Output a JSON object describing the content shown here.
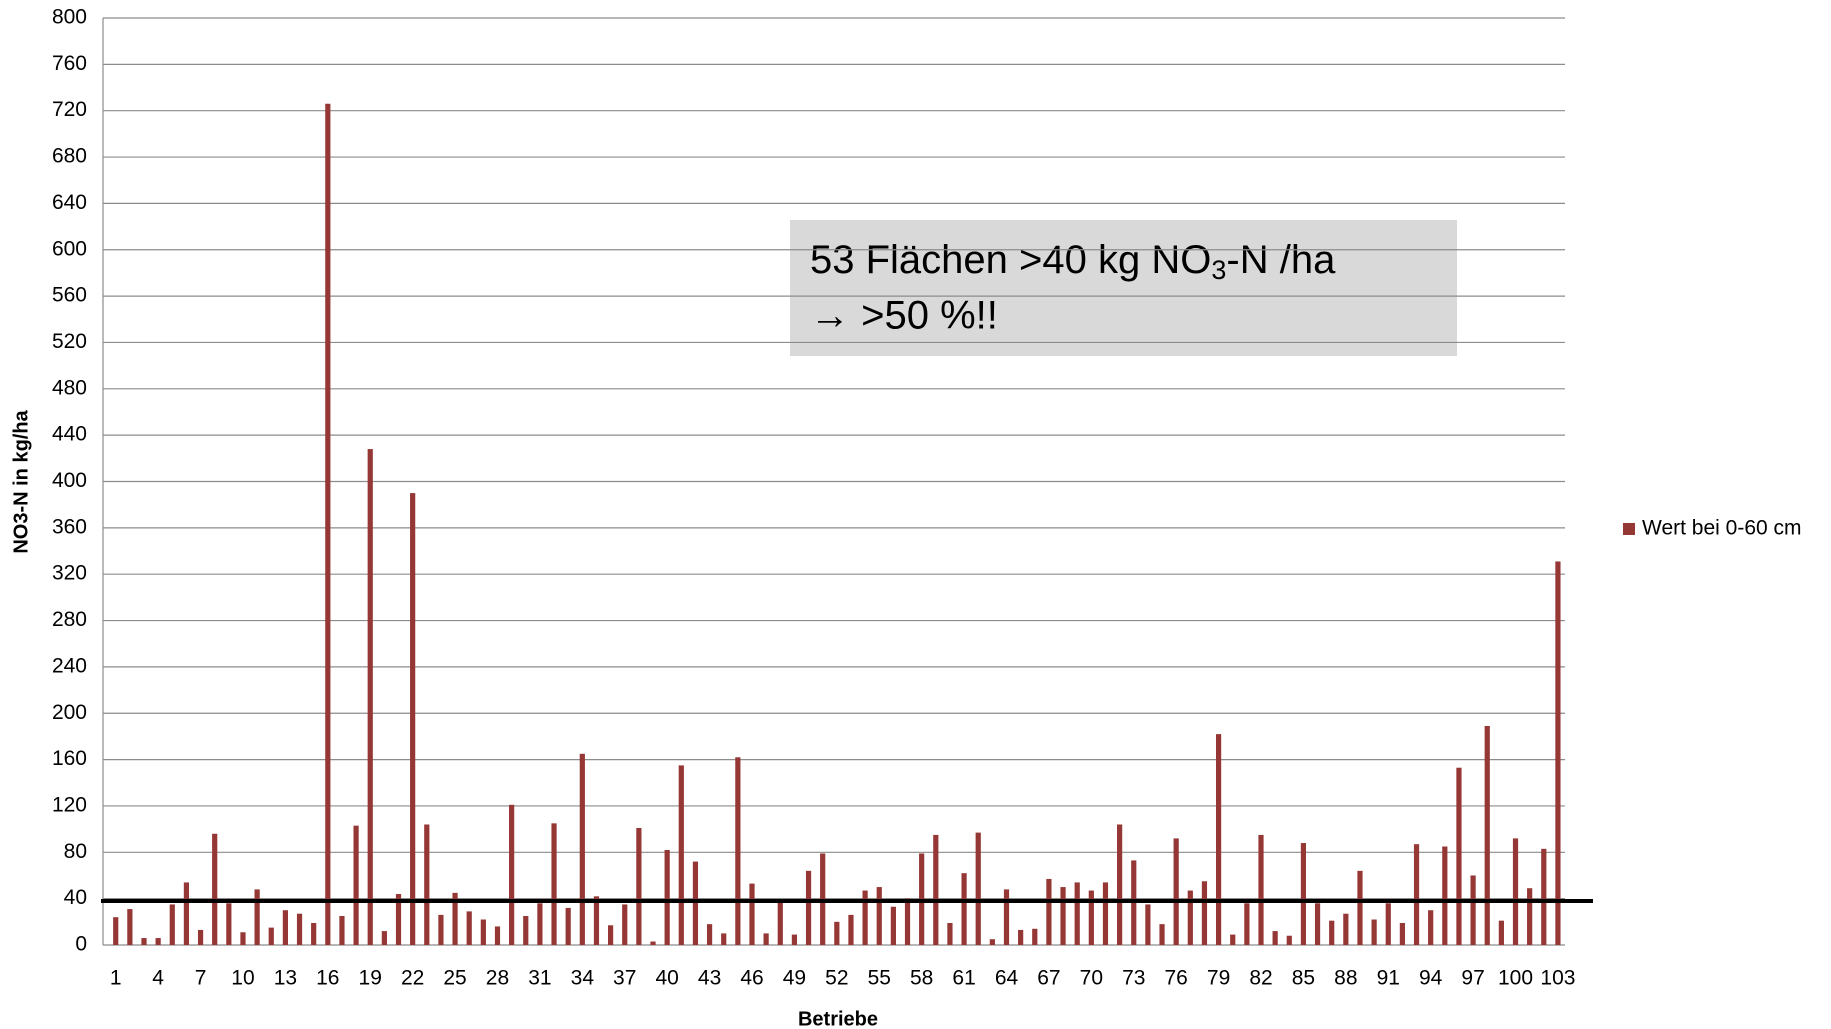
{
  "chart_data": {
    "type": "bar",
    "y_label": "NO3-N in kg/ha",
    "x_label": "Betriebe",
    "categories": [
      "1",
      null,
      null,
      "4",
      null,
      null,
      "7",
      null,
      null,
      "10",
      null,
      null,
      "13",
      null,
      null,
      "16",
      null,
      null,
      "19",
      null,
      null,
      "22",
      null,
      null,
      "25",
      null,
      null,
      "28",
      null,
      null,
      "31",
      null,
      null,
      "34",
      null,
      null,
      "37",
      null,
      null,
      "40",
      null,
      null,
      "43",
      null,
      null,
      "46",
      null,
      null,
      "49",
      null,
      null,
      "52",
      null,
      null,
      "55",
      null,
      null,
      "58",
      null,
      null,
      "61",
      null,
      null,
      "64",
      null,
      null,
      "67",
      null,
      null,
      "70",
      null,
      null,
      "73",
      null,
      null,
      "76",
      null,
      null,
      "79",
      null,
      null,
      "82",
      null,
      null,
      "85",
      null,
      null,
      "88",
      null,
      null,
      "91",
      null,
      null,
      "94",
      null,
      null,
      "97",
      null,
      null,
      "100",
      null,
      null,
      "103"
    ],
    "series": [
      {
        "name": "Wert bei 0-60 cm",
        "color": "#953735",
        "values": [
          24,
          31,
          6,
          6,
          35,
          54,
          13,
          96,
          36,
          11,
          48,
          15,
          30,
          27,
          19,
          726,
          25,
          103,
          428,
          12,
          44,
          390,
          104,
          26,
          45,
          29,
          22,
          16,
          121,
          25,
          36,
          105,
          32,
          165,
          42,
          17,
          35,
          101,
          3,
          82,
          155,
          72,
          18,
          10,
          162,
          53,
          10,
          37,
          9,
          64,
          79,
          20,
          26,
          47,
          50,
          33,
          40,
          79,
          95,
          19,
          62,
          97,
          5,
          48,
          13,
          14,
          57,
          50,
          54,
          47,
          54,
          104,
          73,
          35,
          18,
          92,
          47,
          55,
          182,
          9,
          36,
          95,
          12,
          8,
          88,
          36,
          21,
          27,
          64,
          22,
          36,
          19,
          87,
          30,
          85,
          153,
          60,
          189,
          21,
          92,
          49,
          83,
          331
        ]
      }
    ],
    "ylim": [
      0,
      800
    ],
    "yticks": [
      0,
      40,
      80,
      120,
      160,
      200,
      240,
      280,
      320,
      360,
      400,
      440,
      480,
      520,
      560,
      600,
      640,
      680,
      720,
      760,
      800
    ],
    "grid": true,
    "legend": "right",
    "threshold": 38,
    "annotation": {
      "line1": [
        "53 Flächen >40 kg NO",
        "3",
        "-N /ha"
      ],
      "line2": "→ >50 %!!"
    }
  }
}
